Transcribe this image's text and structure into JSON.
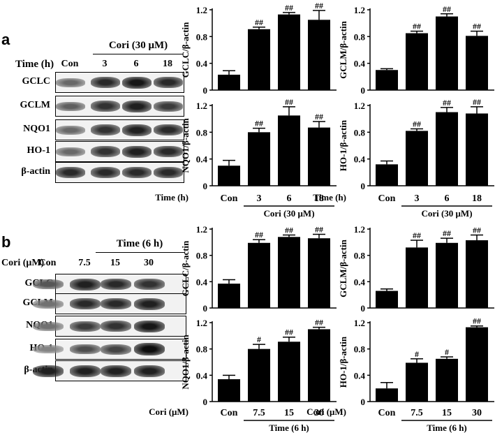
{
  "panels": [
    {
      "letter": "a",
      "blot": {
        "row_header_label": "Time (h)",
        "group_label": "Cori (30 μM)",
        "lanes": [
          "Con",
          "3",
          "6",
          "18"
        ],
        "rows": [
          {
            "label": "GCLC",
            "intensity": [
              0.45,
              0.8,
              0.9,
              0.8
            ]
          },
          {
            "label": "GCLM",
            "intensity": [
              0.5,
              0.75,
              0.85,
              0.7
            ]
          },
          {
            "label": "NQO1",
            "intensity": [
              0.45,
              0.75,
              0.85,
              0.8
            ]
          },
          {
            "label": "HO-1",
            "intensity": [
              0.45,
              0.75,
              0.85,
              0.8
            ]
          },
          {
            "label": "β-actin",
            "intensity": [
              0.8,
              0.8,
              0.8,
              0.8
            ]
          }
        ]
      },
      "axis_xlabel": "Time (h)",
      "axis_group_label": "Cori (30 μM)"
    },
    {
      "letter": "b",
      "blot": {
        "row_header_label": "Cori (μM)",
        "group_label": "Time (6 h)",
        "lanes": [
          "Con",
          "7.5",
          "15",
          "30"
        ],
        "rows": [
          {
            "label": "GCLC",
            "intensity": [
              0.55,
              0.85,
              0.8,
              0.75
            ]
          },
          {
            "label": "GCLM",
            "intensity": [
              0.4,
              0.8,
              0.8,
              0.85
            ]
          },
          {
            "label": "NQO1",
            "intensity": [
              0.4,
              0.7,
              0.75,
              0.9
            ]
          },
          {
            "label": "HO-1",
            "intensity": [
              0.3,
              0.6,
              0.65,
              0.95
            ]
          },
          {
            "label": "β-actin",
            "intensity": [
              0.85,
              0.85,
              0.85,
              0.85
            ]
          }
        ]
      },
      "axis_xlabel": "Cori (μM)",
      "axis_group_label": "Time (6 h)"
    }
  ],
  "chart_data": [
    {
      "type": "bar",
      "ylabel": "GCLC/β-actin",
      "categories": [
        "Con",
        "3",
        "6",
        "18"
      ],
      "values": [
        0.23,
        0.91,
        1.13,
        1.05
      ],
      "errors": [
        0.06,
        0.03,
        0.03,
        0.14
      ],
      "annotations": [
        "",
        "##",
        "##",
        "##"
      ],
      "ylim": [
        0,
        1.2
      ],
      "yticks": [
        "0",
        "0.4",
        "0.8",
        "1.2"
      ]
    },
    {
      "type": "bar",
      "ylabel": "GCLM/β-actin",
      "categories": [
        "Con",
        "3",
        "6",
        "18"
      ],
      "values": [
        0.3,
        0.85,
        1.1,
        0.81
      ],
      "errors": [
        0.02,
        0.03,
        0.04,
        0.07
      ],
      "annotations": [
        "",
        "##",
        "##",
        "##"
      ],
      "ylim": [
        0,
        1.2
      ],
      "yticks": [
        "0",
        "0.4",
        "0.8",
        "1.2"
      ]
    },
    {
      "type": "bar",
      "ylabel": "NQO1/β-actin",
      "categories": [
        "Con",
        "3",
        "6",
        "18"
      ],
      "values": [
        0.3,
        0.8,
        1.05,
        0.87
      ],
      "errors": [
        0.08,
        0.06,
        0.13,
        0.09
      ],
      "annotations": [
        "",
        "##",
        "##",
        "##"
      ],
      "ylim": [
        0,
        1.2
      ],
      "yticks": [
        "0",
        "0.4",
        "0.8",
        "1.2"
      ]
    },
    {
      "type": "bar",
      "ylabel": "HO-1/β-actin",
      "categories": [
        "Con",
        "3",
        "6",
        "18"
      ],
      "values": [
        0.32,
        0.82,
        1.1,
        1.08
      ],
      "errors": [
        0.05,
        0.03,
        0.07,
        0.1
      ],
      "annotations": [
        "",
        "##",
        "##",
        "##"
      ],
      "ylim": [
        0,
        1.2
      ],
      "yticks": [
        "0",
        "0.4",
        "0.8",
        "1.2"
      ]
    },
    {
      "type": "bar",
      "ylabel": "GCLC/β-actin",
      "categories": [
        "Con",
        "7.5",
        "15",
        "30"
      ],
      "values": [
        0.37,
        0.99,
        1.08,
        1.06
      ],
      "errors": [
        0.06,
        0.05,
        0.03,
        0.06
      ],
      "annotations": [
        "",
        "##",
        "##",
        "##"
      ],
      "ylim": [
        0,
        1.2
      ],
      "yticks": [
        "0",
        "0.4",
        "0.8",
        "1.2"
      ]
    },
    {
      "type": "bar",
      "ylabel": "GCLM/β-actin",
      "categories": [
        "Con",
        "7.5",
        "15",
        "30"
      ],
      "values": [
        0.26,
        0.92,
        0.99,
        1.03
      ],
      "errors": [
        0.03,
        0.11,
        0.07,
        0.08
      ],
      "annotations": [
        "",
        "##",
        "##",
        "##"
      ],
      "ylim": [
        0,
        1.2
      ],
      "yticks": [
        "0",
        "0.4",
        "0.8",
        "1.2"
      ]
    },
    {
      "type": "bar",
      "ylabel": "NQO1/β-actin",
      "categories": [
        "Con",
        "7.5",
        "15",
        "30"
      ],
      "values": [
        0.34,
        0.8,
        0.91,
        1.1
      ],
      "errors": [
        0.06,
        0.07,
        0.07,
        0.03
      ],
      "annotations": [
        "",
        "#",
        "##",
        "##"
      ],
      "ylim": [
        0,
        1.2
      ],
      "yticks": [
        "0",
        "0.4",
        "0.8",
        "1.2"
      ]
    },
    {
      "type": "bar",
      "ylabel": "HO-1/β-actin",
      "categories": [
        "Con",
        "7.5",
        "15",
        "30"
      ],
      "values": [
        0.2,
        0.59,
        0.65,
        1.13
      ],
      "errors": [
        0.09,
        0.06,
        0.03,
        0.02
      ],
      "annotations": [
        "",
        "#",
        "#",
        "##"
      ],
      "ylim": [
        0,
        1.2
      ],
      "yticks": [
        "0",
        "0.4",
        "0.8",
        "1.2"
      ]
    }
  ]
}
